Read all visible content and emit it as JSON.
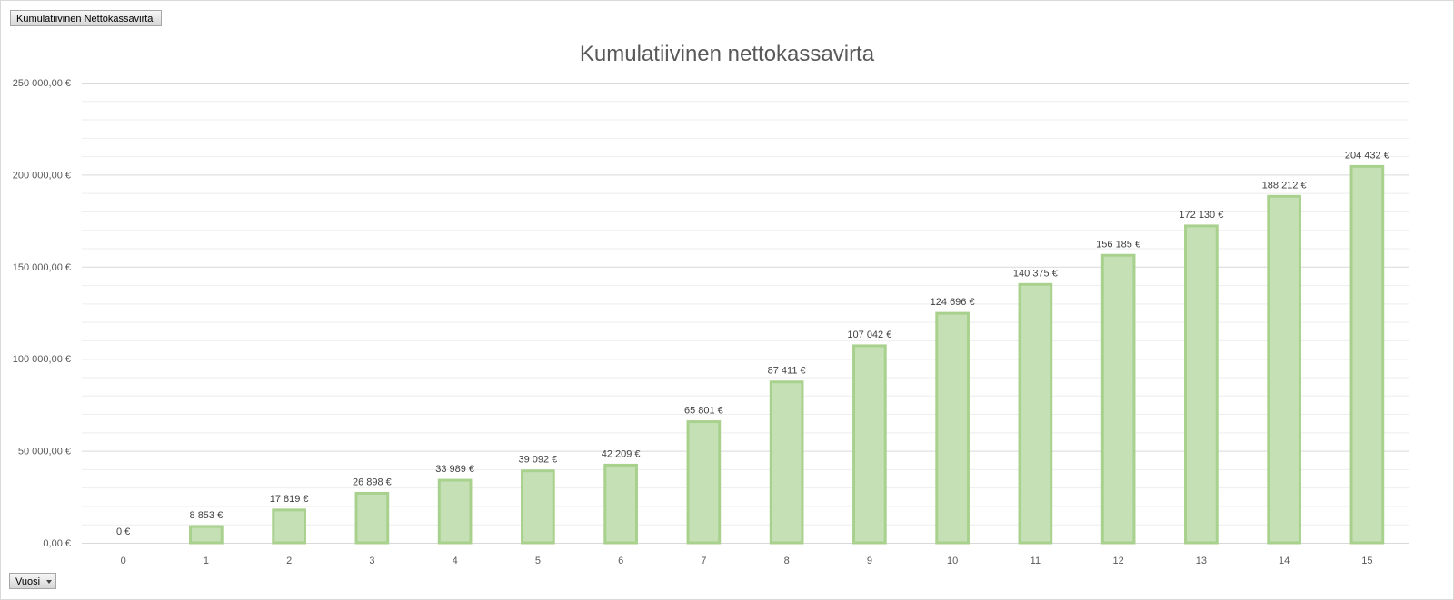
{
  "field_buttons": {
    "top_label": "Kumulatiivinen Nettokassavirta",
    "axis_label": "Vuosi"
  },
  "chart_data": {
    "type": "bar",
    "title": "Kumulatiivinen nettokassavirta",
    "xlabel": "",
    "ylabel": "",
    "categories": [
      "0",
      "1",
      "2",
      "3",
      "4",
      "5",
      "6",
      "7",
      "8",
      "9",
      "10",
      "11",
      "12",
      "13",
      "14",
      "15"
    ],
    "values": [
      0,
      8853,
      17819,
      26898,
      33989,
      39092,
      42209,
      65801,
      87411,
      107042,
      124696,
      140375,
      156185,
      172130,
      188212,
      204432
    ],
    "data_labels": [
      "0 €",
      "8 853 €",
      "17 819 €",
      "26 898 €",
      "33 989 €",
      "39 092 €",
      "42 209 €",
      "65 801 €",
      "87 411 €",
      "107 042 €",
      "124 696 €",
      "140 375 €",
      "156 185 €",
      "172 130 €",
      "188 212 €",
      "204 432 €"
    ],
    "y_ticks": [
      0,
      50000,
      100000,
      150000,
      200000,
      250000
    ],
    "y_tick_labels": [
      "0,00 €",
      "50 000,00 €",
      "100 000,00 €",
      "150 000,00 €",
      "200 000,00 €",
      "250 000,00 €"
    ],
    "ylim": [
      0,
      250000
    ],
    "grid": true,
    "legend": "none",
    "colors": {
      "bar_fill": "#c5e0b4",
      "bar_stroke": "#a9d18e",
      "grid_major": "#d9d9d9",
      "grid_minor": "#eeeeee"
    }
  }
}
